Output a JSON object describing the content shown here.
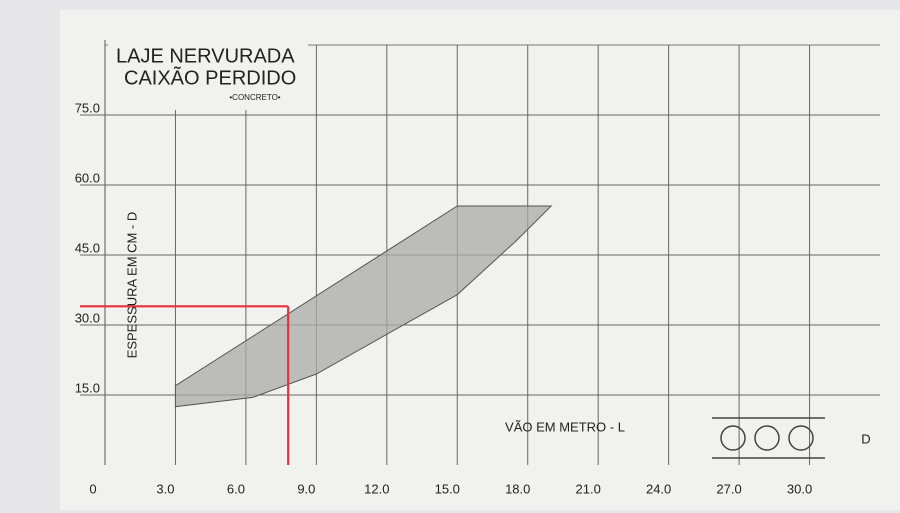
{
  "chart_data": {
    "type": "area",
    "title": [
      "LAJE NERVURADA",
      "CAIXÃO PERDIDO"
    ],
    "subtitle": "•CONCRETO•",
    "x_label": "VÃO EM METRO - L",
    "y_label": "ESPESSURA EM CM - D",
    "annotation": "D",
    "x": [
      3.0,
      15.0,
      19.0,
      17.5,
      15.0,
      9.0,
      6.3,
      3.0
    ],
    "values": [
      17,
      55.5,
      55.5,
      48,
      36.5,
      19.5,
      14.5,
      12.5
    ],
    "color": "#a9a9a9",
    "reference": {
      "x": 7.8,
      "y": 34,
      "color": "#e8323a"
    },
    "xlim": [
      0,
      33
    ],
    "ylim": [
      0,
      90
    ],
    "xticks": [
      0,
      {
        "value": 3,
        "label": "3.0"
      },
      {
        "value": 6,
        "label": "6.0"
      },
      {
        "value": 9,
        "label": "9.0"
      },
      {
        "value": 12,
        "label": "12.0"
      },
      {
        "value": 15,
        "label": "15.0"
      },
      {
        "value": 18,
        "label": "18.0"
      },
      {
        "value": 21,
        "label": "21.0"
      },
      {
        "value": 24,
        "label": "24.0"
      },
      {
        "value": 27,
        "label": "27.0"
      },
      {
        "value": 30,
        "label": "30.0"
      }
    ],
    "yticks": [
      {
        "value": 15,
        "label": "15.0"
      },
      {
        "value": 30,
        "label": "30.0"
      },
      {
        "value": 45,
        "label": "45.0"
      },
      {
        "value": 60,
        "label": "60.0"
      },
      {
        "value": 75,
        "label": "75.0"
      }
    ],
    "grid": true
  }
}
